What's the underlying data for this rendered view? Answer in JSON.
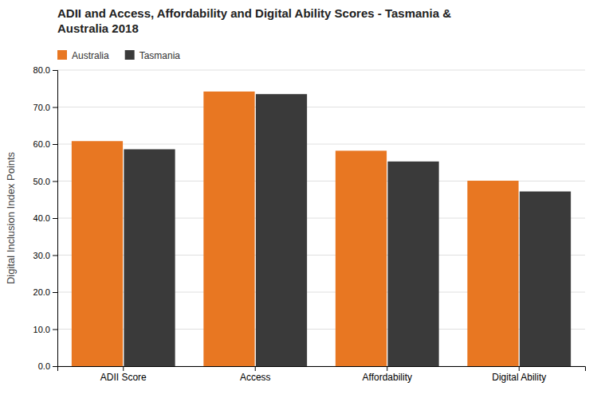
{
  "chart_data": {
    "type": "bar",
    "title": "ADII and Access, Affordability and Digital Ability Scores - Tasmania &\nAustralia 2018",
    "categories": [
      "ADII Score",
      "Access",
      "Affordability",
      "Digital Ability"
    ],
    "series": [
      {
        "name": "Australia",
        "color": "#E87722",
        "values": [
          60.8,
          74.2,
          58.2,
          50.1
        ]
      },
      {
        "name": "Tasmania",
        "color": "#3a3a3a",
        "values": [
          58.6,
          73.5,
          55.3,
          47.2
        ]
      }
    ],
    "ylabel": "Digital Inclusion Index Points",
    "ylim": [
      0,
      80
    ],
    "yticks": [
      {
        "value": 0,
        "label": "0.0"
      },
      {
        "value": 10,
        "label": "10.0"
      },
      {
        "value": 20,
        "label": "20.0"
      },
      {
        "value": 30,
        "label": "30.0"
      },
      {
        "value": 40,
        "label": "40.0"
      },
      {
        "value": 50,
        "label": "50.0"
      },
      {
        "value": 60,
        "label": "60.0"
      },
      {
        "value": 70,
        "label": "70.0"
      },
      {
        "value": 80,
        "label": "80.0"
      }
    ],
    "grid": true,
    "legend": "upper left"
  }
}
